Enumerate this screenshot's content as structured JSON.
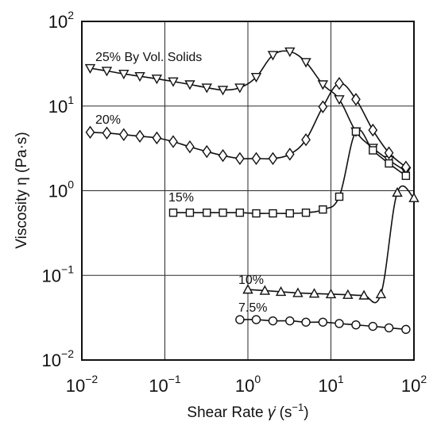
{
  "chart_data": {
    "type": "line",
    "title": "",
    "xlabel": "Shear Rate",
    "xlabel_symbol": "γ̇",
    "xlabel_unit": "(s",
    "xlabel_unit_exp": "−1",
    "xlabel_unit_close": ")",
    "ylabel": "Viscosity η (Pa·s)",
    "x_scale": "log",
    "y_scale": "log",
    "xlim": [
      0.01,
      100
    ],
    "ylim": [
      0.01,
      100
    ],
    "grid": true,
    "x_ticks": [
      {
        "base": "10",
        "exp": "−2"
      },
      {
        "base": "10",
        "exp": "−1"
      },
      {
        "base": "10",
        "exp": "0"
      },
      {
        "base": "10",
        "exp": "1"
      },
      {
        "base": "10",
        "exp": "2"
      }
    ],
    "y_ticks": [
      {
        "base": "10",
        "exp": "−2"
      },
      {
        "base": "10",
        "exp": "−1"
      },
      {
        "base": "10",
        "exp": "0"
      },
      {
        "base": "10",
        "exp": "1"
      },
      {
        "base": "10",
        "exp": "2"
      }
    ],
    "series": [
      {
        "name": "25% By Vol. Solids",
        "marker": "triangle-down",
        "x": [
          0.0126,
          0.02,
          0.032,
          0.05,
          0.08,
          0.126,
          0.2,
          0.32,
          0.5,
          0.8,
          1.26,
          2.0,
          3.2,
          5.0,
          8.0,
          12.6,
          20,
          32,
          50,
          80
        ],
        "y": [
          28,
          26,
          24,
          22.5,
          21,
          19.5,
          18,
          16.5,
          15.5,
          16.5,
          22,
          40,
          44,
          33,
          18,
          12,
          5.0,
          3.2,
          2.3,
          1.7
        ]
      },
      {
        "name": "20%",
        "marker": "diamond",
        "x": [
          0.0126,
          0.02,
          0.032,
          0.05,
          0.08,
          0.126,
          0.2,
          0.32,
          0.5,
          0.8,
          1.26,
          2.0,
          3.2,
          5.0,
          8.0,
          12.6,
          20,
          32,
          50,
          80
        ],
        "y": [
          4.9,
          4.8,
          4.6,
          4.4,
          4.2,
          3.8,
          3.3,
          2.9,
          2.6,
          2.4,
          2.4,
          2.4,
          2.7,
          4.0,
          9.8,
          18.5,
          12,
          5.2,
          2.8,
          1.9
        ]
      },
      {
        "name": "15%",
        "marker": "square",
        "x": [
          0.126,
          0.2,
          0.32,
          0.5,
          0.8,
          1.26,
          2.0,
          3.2,
          5.0,
          8.0,
          12.6,
          20,
          32,
          50,
          80
        ],
        "y": [
          0.55,
          0.55,
          0.55,
          0.55,
          0.55,
          0.54,
          0.54,
          0.54,
          0.55,
          0.6,
          0.85,
          5.0,
          3.0,
          2.1,
          1.5
        ]
      },
      {
        "name": "10%",
        "marker": "triangle-up",
        "x": [
          1.0,
          1.6,
          2.5,
          4.0,
          6.3,
          10,
          16,
          25,
          40,
          63,
          100
        ],
        "y": [
          0.068,
          0.066,
          0.064,
          0.062,
          0.061,
          0.06,
          0.059,
          0.058,
          0.06,
          0.95,
          0.82
        ]
      },
      {
        "name": "7.5%",
        "marker": "circle",
        "x": [
          0.8,
          1.26,
          2.0,
          3.2,
          5.0,
          8.0,
          12.6,
          20,
          32,
          50,
          80
        ],
        "y": [
          0.03,
          0.03,
          0.029,
          0.029,
          0.028,
          0.028,
          0.027,
          0.026,
          0.025,
          0.024,
          0.023
        ]
      }
    ]
  }
}
